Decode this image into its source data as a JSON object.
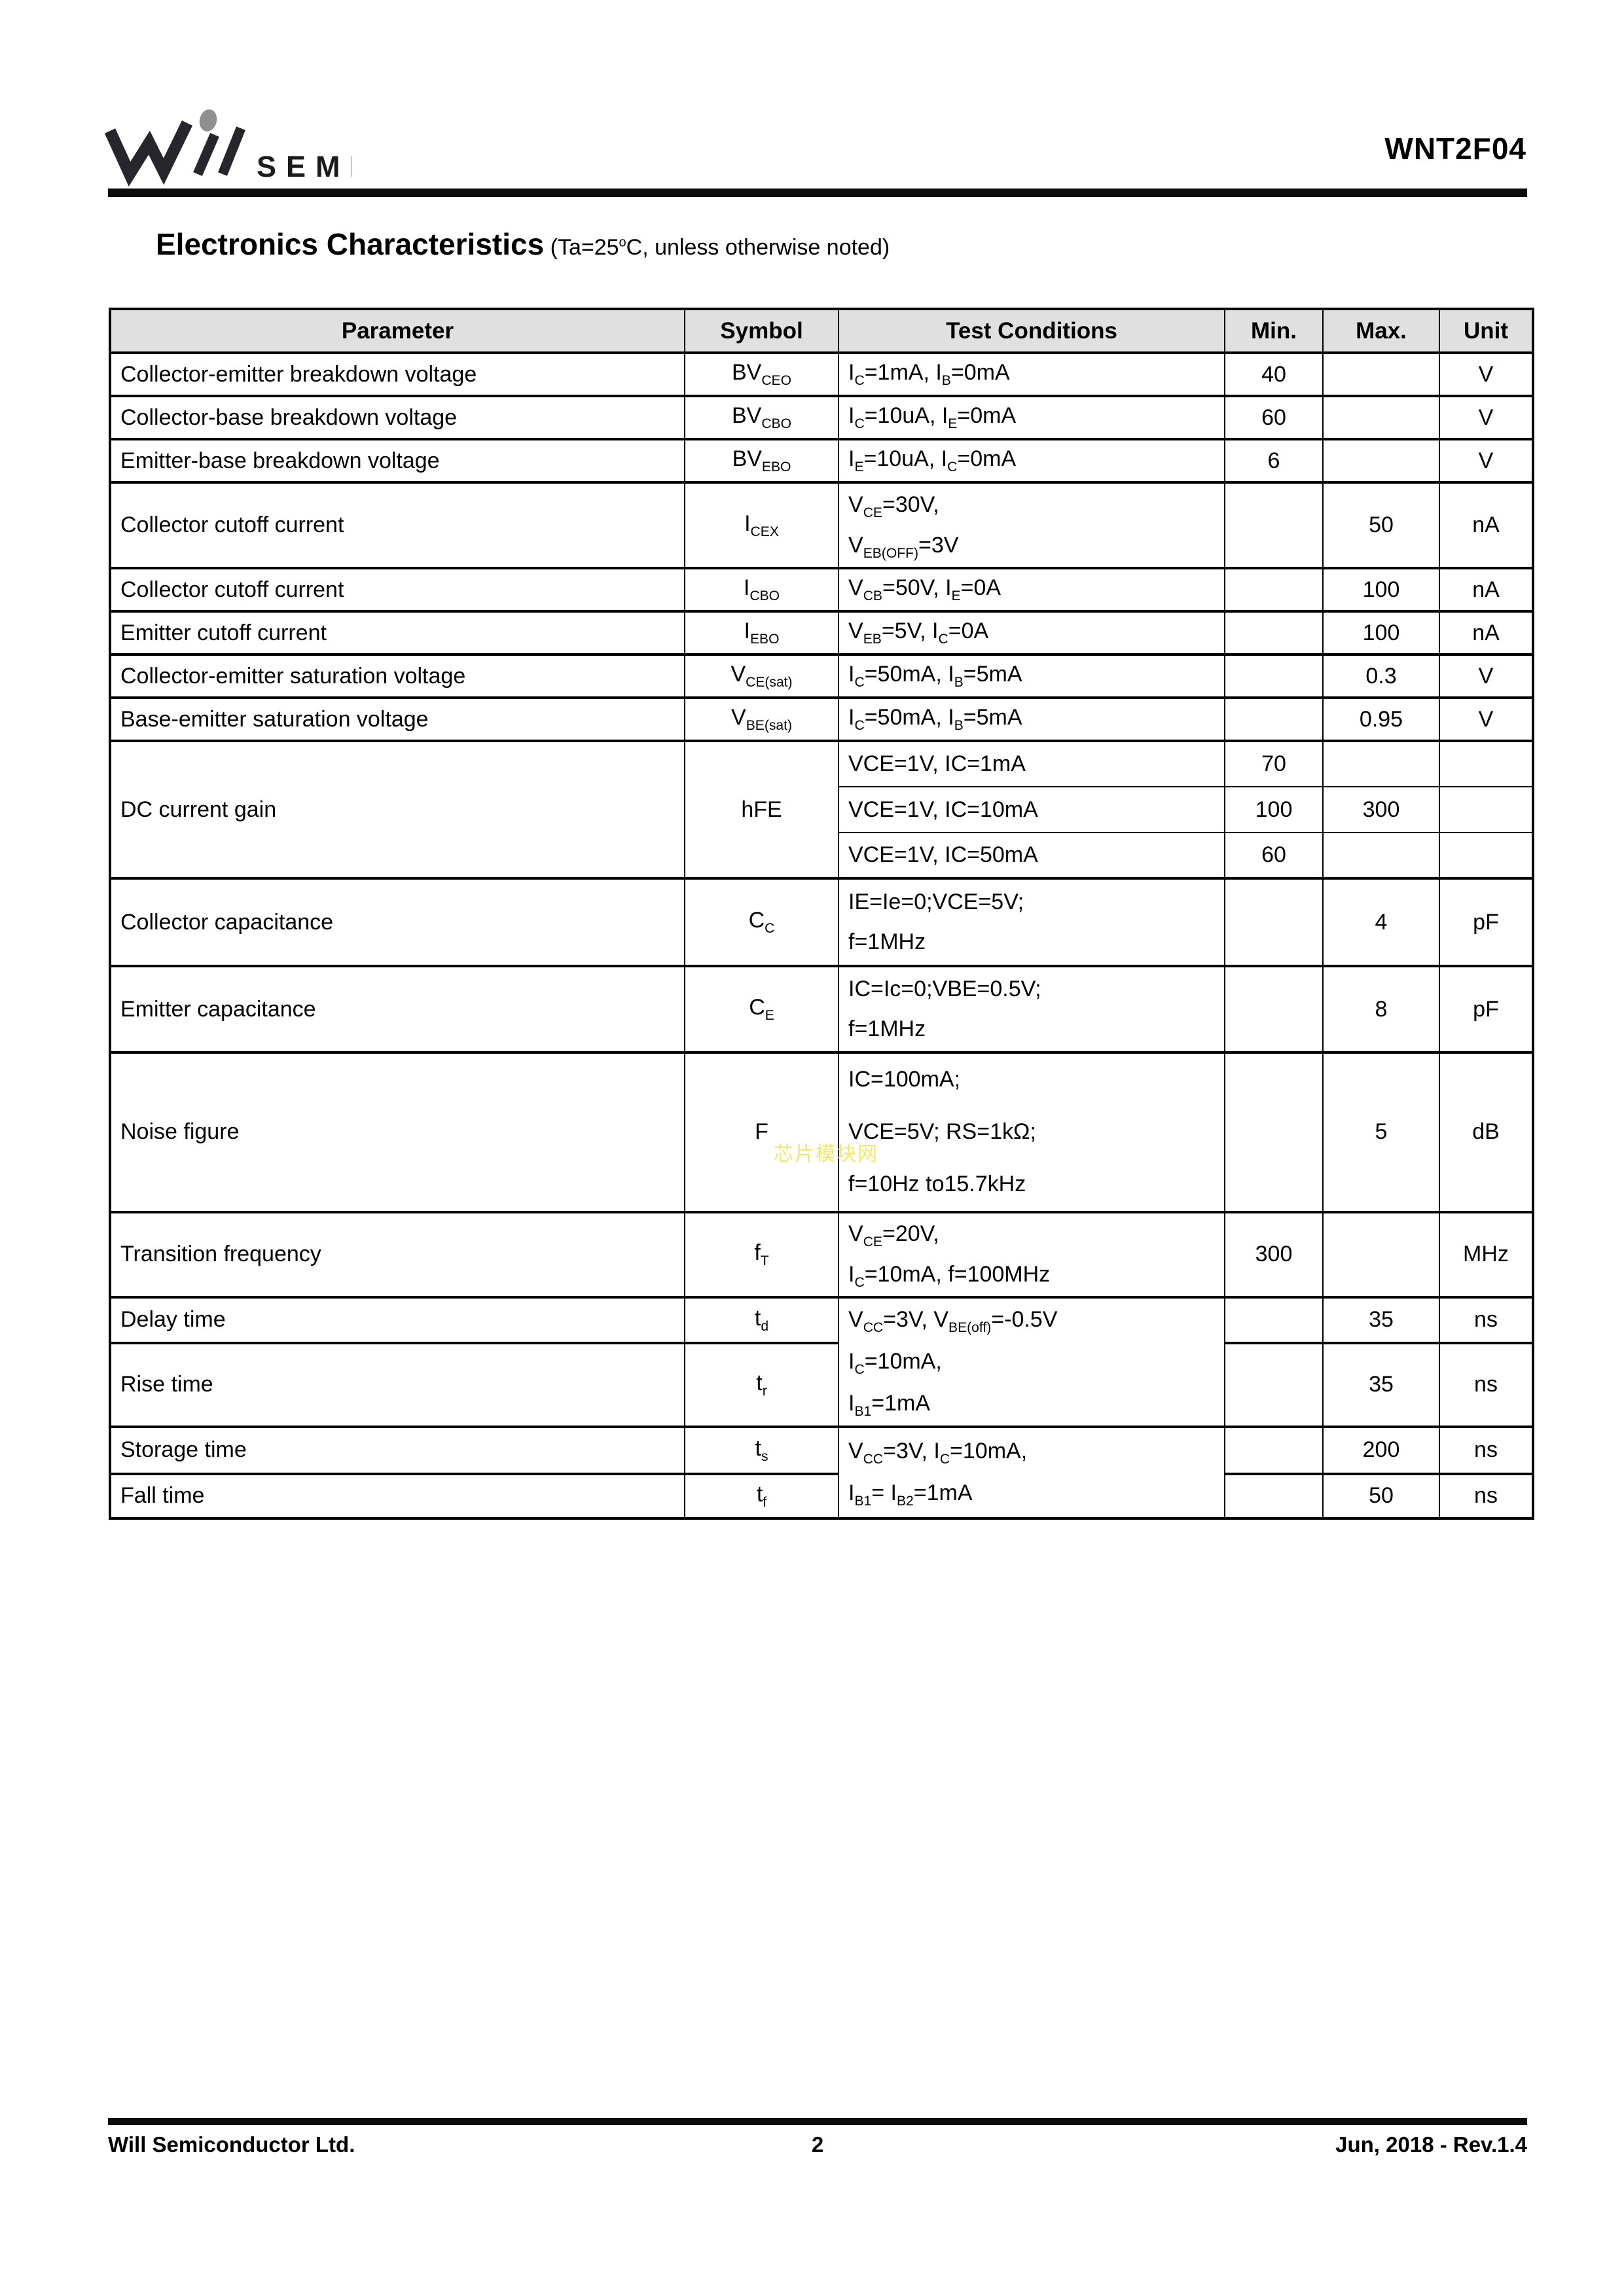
{
  "header": {
    "brand_semi": "SEMI",
    "part_number": "WNT2F04"
  },
  "title": {
    "main": "Electronics Characteristics",
    "note_pre": " (Ta=25",
    "note_sup": "o",
    "note_post": "C, unless otherwise noted)"
  },
  "watermark": "芯片模块网",
  "table": {
    "headers": [
      "Parameter",
      "Symbol",
      "Test Conditions",
      "Min.",
      "Max.",
      "Unit"
    ],
    "rows": {
      "bvceo": {
        "param": "Collector-emitter breakdown voltage",
        "symbol": "BV<sub>CEO</sub>",
        "cond": "I<sub>C</sub>=1mA, I<sub>B</sub>=0mA",
        "min": "40",
        "max": "",
        "unit": "V"
      },
      "bvcbo": {
        "param": "Collector-base breakdown voltage",
        "symbol": "BV<sub>CBO</sub>",
        "cond": "I<sub>C</sub>=10uA, I<sub>E</sub>=0mA",
        "min": "60",
        "max": "",
        "unit": "V"
      },
      "bvebo": {
        "param": "Emitter-base breakdown voltage",
        "symbol": "BV<sub>EBO</sub>",
        "cond": "I<sub>E</sub>=10uA, I<sub>C</sub>=0mA",
        "min": "6",
        "max": "",
        "unit": "V"
      },
      "icex": {
        "param": "Collector cutoff current",
        "symbol": "I<sub>CEX</sub>",
        "cond": "V<sub>CE</sub>=30V,<br>V<sub>EB(OFF)</sub>=3V",
        "min": "",
        "max": "50",
        "unit": "nA"
      },
      "icbo": {
        "param": "Collector cutoff current",
        "symbol": "I<sub>CBO</sub>",
        "cond": "V<sub>CB</sub>=50V, I<sub>E</sub>=0A",
        "min": "",
        "max": "100",
        "unit": "nA"
      },
      "iebo": {
        "param": "Emitter cutoff current",
        "symbol": "I<sub>EBO</sub>",
        "cond": "V<sub>EB</sub>=5V, I<sub>C</sub>=0A",
        "min": "",
        "max": "100",
        "unit": "nA"
      },
      "vcesat": {
        "param": "Collector-emitter saturation voltage",
        "symbol": "V<sub>CE(sat)</sub>",
        "cond": "I<sub>C</sub>=50mA, I<sub>B</sub>=5mA",
        "min": "",
        "max": "0.3",
        "unit": "V"
      },
      "vbesat": {
        "param": "Base-emitter saturation voltage",
        "symbol": "V<sub>BE(sat)</sub>",
        "cond": "I<sub>C</sub>=50mA, I<sub>B</sub>=5mA",
        "min": "",
        "max": "0.95",
        "unit": "V"
      },
      "hfe": {
        "param": "DC current gain",
        "symbol": "hFE",
        "sub": [
          {
            "cond": "VCE=1V, IC=1mA",
            "min": "70",
            "max": "",
            "unit": ""
          },
          {
            "cond": "VCE=1V, IC=10mA",
            "min": "100",
            "max": "300",
            "unit": ""
          },
          {
            "cond": "VCE=1V, IC=50mA",
            "min": "60",
            "max": "",
            "unit": ""
          }
        ]
      },
      "cc": {
        "param": "Collector capacitance",
        "symbol": "C<sub>C</sub>",
        "cond": "IE=Ie=0;VCE=5V;<br>f=1MHz",
        "min": "",
        "max": "4",
        "unit": "pF"
      },
      "ce": {
        "param": "Emitter capacitance",
        "symbol": "C<sub>E</sub>",
        "cond": "IC=Ic=0;VBE=0.5V;<br>f=1MHz",
        "min": "",
        "max": "8",
        "unit": "pF"
      },
      "noise": {
        "param": "Noise figure",
        "symbol": "F",
        "cond": "IC=100mA;<br>VCE=5V; RS=1kΩ;<br>f=10Hz to15.7kHz",
        "min": "",
        "max": "5",
        "unit": "dB"
      },
      "ft": {
        "param": "Transition frequency",
        "symbol": "f<sub>T</sub>",
        "cond": "V<sub>CE</sub>=20V,<br>I<sub>C</sub>=10mA, f=100MHz",
        "min": "300",
        "max": "",
        "unit": "MHz"
      },
      "cond_delay_rise": "V<sub>CC</sub>=3V, V<sub>BE(off)</sub>=-0.5V<br>I<sub>C</sub>=10mA,<br>I<sub>B1</sub>=1mA",
      "cond_storage_fall": "V<sub>CC</sub>=3V, I<sub>C</sub>=10mA,<br>I<sub>B1</sub>= I<sub>B2</sub>=1mA",
      "td": {
        "param": "Delay time",
        "symbol": "t<sub>d</sub>",
        "min": "",
        "max": "35",
        "unit": "ns"
      },
      "tr_": {
        "param": "Rise time",
        "symbol": "t<sub>r</sub>",
        "min": "",
        "max": "35",
        "unit": "ns"
      },
      "ts": {
        "param": "Storage time",
        "symbol": "t<sub>s</sub>",
        "min": "",
        "max": "200",
        "unit": "ns"
      },
      "tf": {
        "param": "Fall time",
        "symbol": "t<sub>f</sub>",
        "min": "",
        "max": "50",
        "unit": "ns"
      }
    }
  },
  "footer": {
    "company": "Will Semiconductor Ltd.",
    "page": "2",
    "revision": "Jun, 2018 - Rev.1.4"
  }
}
